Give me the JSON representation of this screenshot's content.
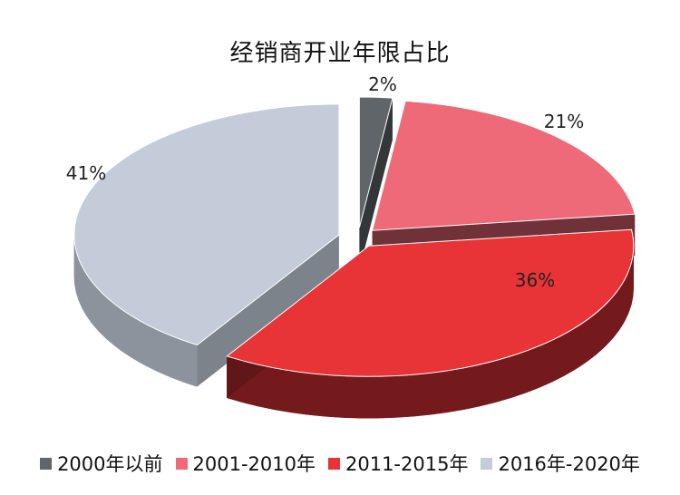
{
  "chart_data": {
    "type": "pie",
    "title": "经销商开业年限占比",
    "categories": [
      "2000年以前",
      "2001-2010年",
      "2011-2015年",
      "2016年-2020年"
    ],
    "values": [
      2,
      21,
      36,
      41
    ],
    "data_labels": [
      "2%",
      "21%",
      "36%",
      "41%"
    ],
    "colors": [
      "#5f6568",
      "#ef6a78",
      "#e83437",
      "#c3ccd8"
    ],
    "legend_position": "bottom",
    "style": "3d-exploded"
  }
}
